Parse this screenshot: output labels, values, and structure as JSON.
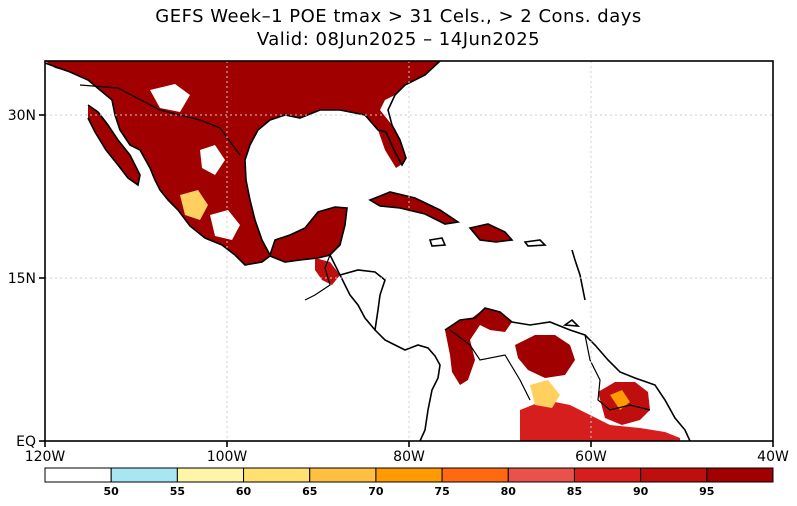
{
  "title": {
    "line1": "GEFS Week–1 POE tmax > 31 Cels., > 2 Cons. days",
    "line2": "Valid: 08Jun2025 – 14Jun2025"
  },
  "map": {
    "lon_range": [
      "120W",
      "40W"
    ],
    "lat_range": [
      "EQ",
      "35N"
    ],
    "lat_labels": [
      "30N",
      "15N",
      "EQ"
    ],
    "lon_labels": [
      "120W",
      "100W",
      "80W",
      "60W",
      "40W"
    ],
    "grid_lines": true
  },
  "colorbar": {
    "tick_labels": [
      "50",
      "55",
      "60",
      "65",
      "70",
      "75",
      "80",
      "85",
      "90",
      "95"
    ],
    "colors": [
      "#ffffff",
      "#a8e6f5",
      "#fff5a8",
      "#ffe070",
      "#ffbf40",
      "#ff9a00",
      "#ff6a10",
      "#e8524a",
      "#d71e1e",
      "#be0e0e",
      "#a00000"
    ]
  }
}
